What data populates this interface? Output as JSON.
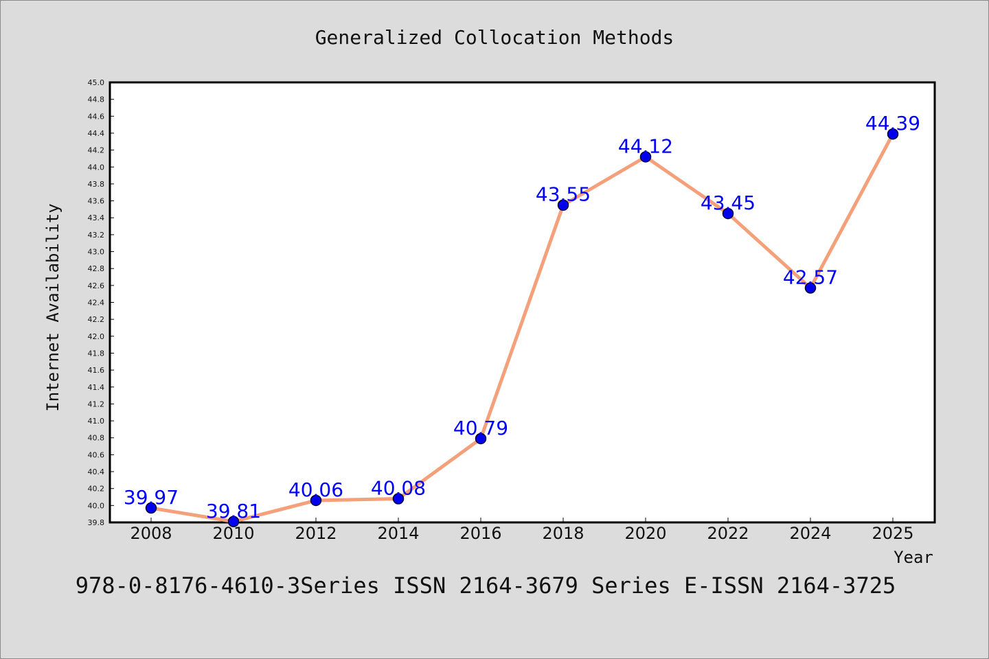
{
  "chart_data": {
    "type": "line",
    "title": "Generalized Collocation Methods",
    "xlabel": "Year",
    "ylabel": "Internet Availability",
    "x": [
      "2008",
      "2010",
      "2012",
      "2014",
      "2016",
      "2018",
      "2020",
      "2022",
      "2024",
      "2025"
    ],
    "y": [
      39.97,
      39.81,
      40.06,
      40.08,
      40.79,
      43.55,
      44.12,
      43.45,
      42.57,
      44.39
    ],
    "data_labels": [
      "39.97",
      "39.81",
      "40.06",
      "40.08",
      "40.79",
      "43.55",
      "44.12",
      "43.45",
      "42.57",
      "44.39"
    ],
    "ylim": [
      39.8,
      45.0
    ],
    "yticks": [
      "39.8",
      "40.0",
      "40.2",
      "40.4",
      "40.6",
      "40.8",
      "41.0",
      "41.2",
      "41.4",
      "41.6",
      "41.8",
      "42.0",
      "42.2",
      "42.4",
      "42.6",
      "42.8",
      "43.0",
      "43.2",
      "43.4",
      "43.6",
      "43.8",
      "44.0",
      "44.2",
      "44.4",
      "44.6",
      "44.8",
      "45.0"
    ],
    "grid": false,
    "legend": "none",
    "colors": {
      "background": "#dcdcdc",
      "plot_background": "#ffffff",
      "line": "#f4a07a",
      "marker": "#0000ee",
      "data_label": "#0000ff"
    }
  },
  "footer": {
    "text": "978-0-8176-4610-3Series ISSN 2164-3679 Series E-ISSN 2164-3725"
  }
}
